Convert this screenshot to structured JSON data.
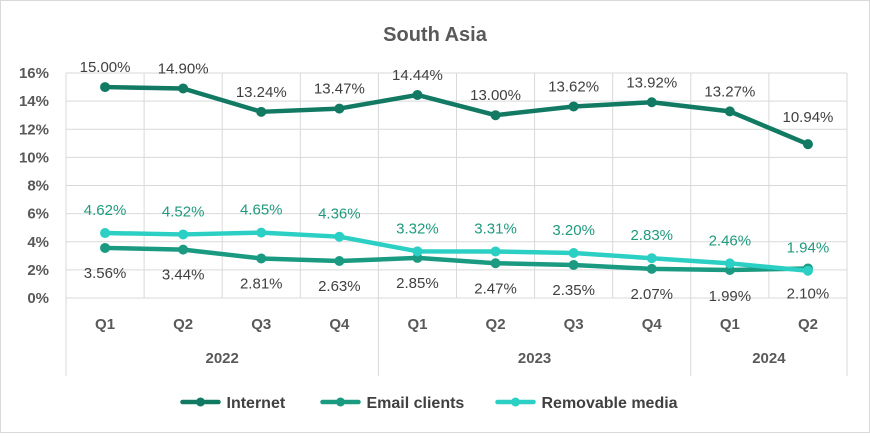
{
  "chart_data": {
    "type": "line",
    "title": "South Asia",
    "categories": [
      "Q1",
      "Q2",
      "Q3",
      "Q4",
      "Q1",
      "Q2",
      "Q3",
      "Q4",
      "Q1",
      "Q2"
    ],
    "year_groups": [
      {
        "label": "2022",
        "quarters": 4
      },
      {
        "label": "2023",
        "quarters": 4
      },
      {
        "label": "2024",
        "quarters": 2
      }
    ],
    "yticks": [
      "0%",
      "2%",
      "4%",
      "6%",
      "8%",
      "10%",
      "12%",
      "14%",
      "16%"
    ],
    "ylim": [
      0,
      16
    ],
    "grid": true,
    "legend_position": "bottom",
    "series": [
      {
        "name": "Internet",
        "color": "#127a63",
        "values": [
          15.0,
          14.9,
          13.24,
          13.47,
          14.44,
          13.0,
          13.62,
          13.92,
          13.27,
          10.94
        ],
        "labels": [
          "15.00%",
          "14.90%",
          "13.24%",
          "13.47%",
          "14.44%",
          "13.00%",
          "13.62%",
          "13.92%",
          "13.27%",
          "10.94%"
        ]
      },
      {
        "name": "Email clients",
        "color": "#1b9a82",
        "values": [
          3.56,
          3.44,
          2.81,
          2.63,
          2.85,
          2.47,
          2.35,
          2.07,
          1.99,
          2.1
        ],
        "labels": [
          "3.56%",
          "3.44%",
          "2.81%",
          "2.63%",
          "2.85%",
          "2.47%",
          "2.35%",
          "2.07%",
          "1.99%",
          "2.10%"
        ]
      },
      {
        "name": "Removable media",
        "color": "#2ccfc3",
        "label_color": "#1f9a7e",
        "values": [
          4.62,
          4.52,
          4.65,
          4.36,
          3.32,
          3.31,
          3.2,
          2.83,
          2.46,
          1.94
        ],
        "labels": [
          "4.62%",
          "4.52%",
          "4.65%",
          "4.36%",
          "3.32%",
          "3.31%",
          "3.20%",
          "2.83%",
          "2.46%",
          "1.94%"
        ]
      }
    ]
  }
}
